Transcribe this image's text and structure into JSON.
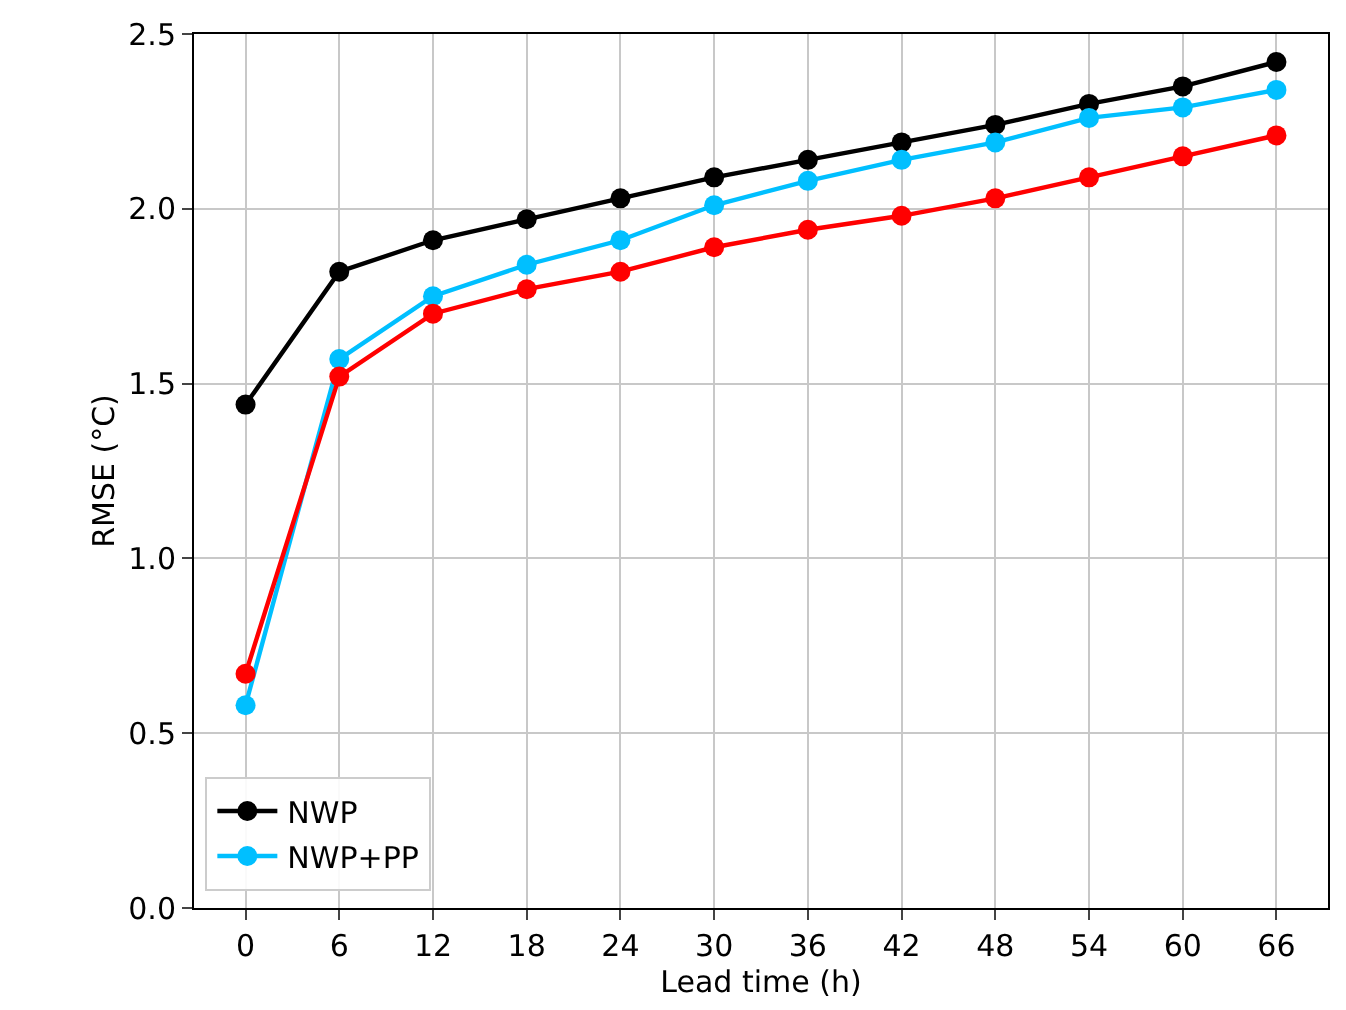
{
  "chart_data": {
    "type": "line",
    "xlabel": "Lead time (h)",
    "ylabel": "RMSE (°C)",
    "x": [
      0,
      6,
      12,
      18,
      24,
      30,
      36,
      42,
      48,
      54,
      60,
      66
    ],
    "xlim": [
      -3.3,
      69.3
    ],
    "xticks": [
      0,
      6,
      12,
      18,
      24,
      30,
      36,
      42,
      48,
      54,
      60,
      66
    ],
    "ylim": [
      0,
      2.5
    ],
    "yticks": [
      {
        "value": 0,
        "label": "0.0"
      },
      0.5,
      {
        "value": 1,
        "label": "1.0"
      },
      1.5,
      {
        "value": 2,
        "label": "2.0"
      },
      2.5
    ],
    "grid": true,
    "legend": "bottom left",
    "marker": "circle",
    "line_style": "solid",
    "series": [
      {
        "name": "NWP",
        "color": "#000000",
        "values": [
          1.44,
          1.82,
          1.91,
          1.97,
          2.03,
          2.09,
          2.14,
          2.19,
          2.24,
          2.3,
          2.35,
          2.42
        ]
      },
      {
        "name": "NWP+PP",
        "color": "#00bfff",
        "values": [
          0.58,
          1.57,
          1.75,
          1.84,
          1.91,
          2.01,
          2.08,
          2.14,
          2.19,
          2.26,
          2.29,
          2.34
        ]
      },
      {
        "color": "#ff0000",
        "values": [
          0.67,
          1.52,
          1.7,
          1.77,
          1.82,
          1.89,
          1.94,
          1.98,
          2.03,
          2.09,
          2.15,
          2.21
        ]
      }
    ]
  }
}
